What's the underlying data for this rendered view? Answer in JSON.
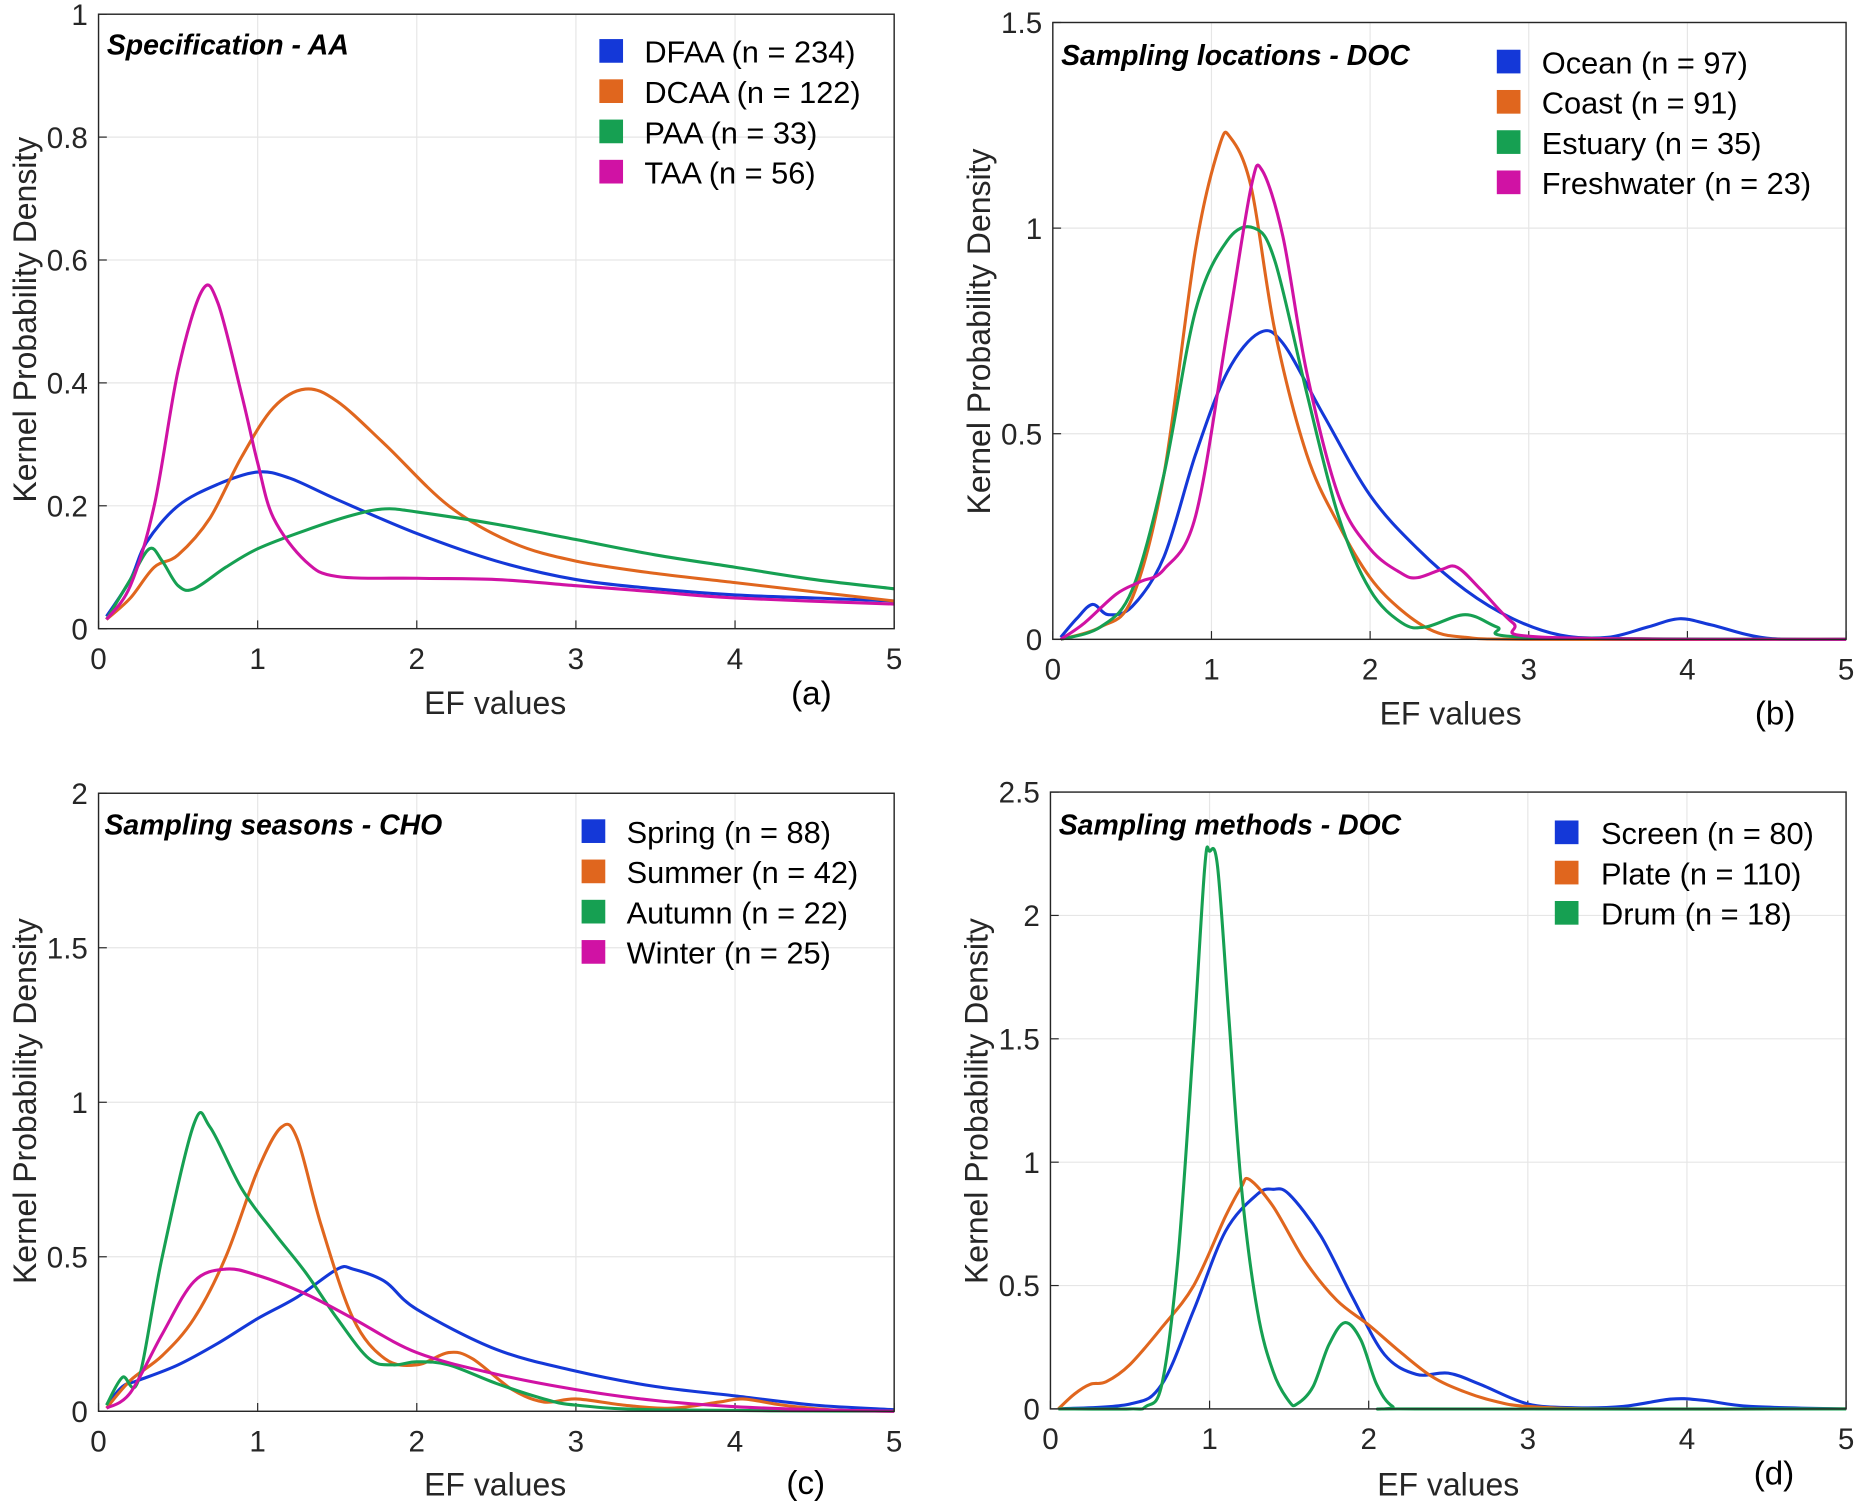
{
  "chart_data": [
    {
      "type": "line",
      "panel_label": "(a)",
      "title": "Specification - AA",
      "xlabel": "EF values",
      "ylabel": "Kernel Probability Density",
      "xlim": [
        0,
        5
      ],
      "ylim": [
        0,
        1
      ],
      "xticks": [
        "0",
        "1",
        "2",
        "3",
        "4",
        "5"
      ],
      "yticks": [
        "0",
        "0.2",
        "0.4",
        "0.6",
        "0.8",
        "1"
      ],
      "grid": true,
      "legend": "top-right",
      "series": [
        {
          "name": "DFAA (n = 234)",
          "color": "#1438d8",
          "x": [
            0.05,
            0.2,
            0.3,
            0.5,
            0.75,
            1.0,
            1.2,
            1.5,
            2,
            2.5,
            3,
            3.5,
            4,
            4.5,
            5
          ],
          "y": [
            0.02,
            0.08,
            0.14,
            0.2,
            0.235,
            0.255,
            0.245,
            0.21,
            0.155,
            0.11,
            0.08,
            0.065,
            0.055,
            0.05,
            0.045
          ]
        },
        {
          "name": "DCAA (n = 122)",
          "color": "#e0661e",
          "x": [
            0.05,
            0.2,
            0.35,
            0.5,
            0.7,
            0.9,
            1.1,
            1.3,
            1.5,
            1.8,
            2.2,
            2.6,
            3,
            3.5,
            4,
            4.5,
            5
          ],
          "y": [
            0.015,
            0.05,
            0.1,
            0.12,
            0.18,
            0.28,
            0.36,
            0.39,
            0.37,
            0.3,
            0.2,
            0.14,
            0.11,
            0.09,
            0.075,
            0.06,
            0.045
          ]
        },
        {
          "name": "PAA (n = 33)",
          "color": "#16a052",
          "x": [
            0.05,
            0.2,
            0.32,
            0.4,
            0.5,
            0.6,
            0.8,
            1.0,
            1.3,
            1.6,
            1.8,
            2,
            2.5,
            3,
            3.5,
            4,
            4.5,
            5
          ],
          "y": [
            0.015,
            0.08,
            0.13,
            0.11,
            0.07,
            0.065,
            0.1,
            0.13,
            0.16,
            0.185,
            0.195,
            0.19,
            0.17,
            0.145,
            0.12,
            0.1,
            0.08,
            0.065
          ]
        },
        {
          "name": "TAA (n = 56)",
          "color": "#d012a4",
          "x": [
            0.05,
            0.2,
            0.35,
            0.5,
            0.65,
            0.75,
            0.9,
            1.0,
            1.1,
            1.3,
            1.5,
            2,
            2.5,
            3,
            3.5,
            4,
            5
          ],
          "y": [
            0.015,
            0.07,
            0.2,
            0.42,
            0.55,
            0.53,
            0.38,
            0.27,
            0.18,
            0.11,
            0.085,
            0.082,
            0.08,
            0.07,
            0.06,
            0.05,
            0.04
          ]
        }
      ]
    },
    {
      "type": "line",
      "panel_label": "(b)",
      "title": "Sampling locations - DOC",
      "xlabel": "EF values",
      "ylabel": "Kernel Probability Density",
      "xlim": [
        0,
        5
      ],
      "ylim": [
        0,
        1.5
      ],
      "xticks": [
        "0",
        "1",
        "2",
        "3",
        "4",
        "5"
      ],
      "yticks": [
        "0",
        "0.5",
        "1",
        "1.5"
      ],
      "grid": true,
      "legend": "top-right",
      "series": [
        {
          "name": "Ocean (n = 97)",
          "color": "#1438d8",
          "x": [
            0.05,
            0.15,
            0.25,
            0.35,
            0.5,
            0.7,
            0.9,
            1.1,
            1.3,
            1.45,
            1.7,
            2,
            2.3,
            2.6,
            2.9,
            3.2,
            3.5,
            3.75,
            3.95,
            4.15,
            4.5,
            5
          ],
          "y": [
            0.005,
            0.05,
            0.085,
            0.06,
            0.08,
            0.2,
            0.45,
            0.65,
            0.745,
            0.72,
            0.55,
            0.35,
            0.22,
            0.12,
            0.05,
            0.01,
            0.005,
            0.03,
            0.05,
            0.035,
            0.003,
            0
          ]
        },
        {
          "name": "Coast (n = 91)",
          "color": "#e0661e",
          "x": [
            0.05,
            0.3,
            0.5,
            0.7,
            0.9,
            1.05,
            1.12,
            1.25,
            1.4,
            1.6,
            1.8,
            2.0,
            2.2,
            2.4,
            2.6,
            3,
            5
          ],
          "y": [
            0,
            0.03,
            0.1,
            0.4,
            0.95,
            1.2,
            1.22,
            1.1,
            0.75,
            0.45,
            0.28,
            0.15,
            0.07,
            0.02,
            0.005,
            0,
            0
          ]
        },
        {
          "name": "Estuary (n = 35)",
          "color": "#16a052",
          "x": [
            0.05,
            0.3,
            0.5,
            0.7,
            0.9,
            1.1,
            1.27,
            1.4,
            1.6,
            1.8,
            2.0,
            2.2,
            2.35,
            2.6,
            2.8,
            3,
            5
          ],
          "y": [
            0,
            0.03,
            0.12,
            0.4,
            0.8,
            0.97,
            1.0,
            0.92,
            0.6,
            0.3,
            0.12,
            0.04,
            0.03,
            0.06,
            0.03,
            0.005,
            0
          ]
        },
        {
          "name": "Freshwater (n = 23)",
          "color": "#d012a4",
          "x": [
            0.05,
            0.2,
            0.4,
            0.55,
            0.7,
            0.9,
            1.1,
            1.25,
            1.32,
            1.45,
            1.6,
            1.8,
            2.0,
            2.2,
            2.3,
            2.45,
            2.55,
            2.7,
            2.9,
            3.1,
            5
          ],
          "y": [
            0,
            0.04,
            0.11,
            0.14,
            0.17,
            0.3,
            0.75,
            1.1,
            1.14,
            0.98,
            0.65,
            0.35,
            0.22,
            0.16,
            0.15,
            0.17,
            0.175,
            0.12,
            0.04,
            0.005,
            0
          ]
        }
      ]
    },
    {
      "type": "line",
      "panel_label": "(c)",
      "title": "Sampling seasons - CHO",
      "xlabel": "EF values",
      "ylabel": "Kernel Probability Density",
      "xlim": [
        0,
        5
      ],
      "ylim": [
        0,
        2
      ],
      "xticks": [
        "0",
        "1",
        "2",
        "3",
        "4",
        "5"
      ],
      "yticks": [
        "0",
        "0.5",
        "1",
        "1.5",
        "2"
      ],
      "grid": true,
      "legend": "top-right",
      "series": [
        {
          "name": "Spring (n = 88)",
          "color": "#1438d8",
          "x": [
            0.05,
            0.15,
            0.25,
            0.5,
            0.75,
            1,
            1.25,
            1.5,
            1.6,
            1.8,
            2,
            2.5,
            3,
            3.5,
            4,
            4.5,
            5
          ],
          "y": [
            0.02,
            0.08,
            0.1,
            0.15,
            0.22,
            0.3,
            0.37,
            0.46,
            0.46,
            0.42,
            0.33,
            0.2,
            0.13,
            0.08,
            0.05,
            0.02,
            0.005
          ]
        },
        {
          "name": "Summer (n = 42)",
          "color": "#e0661e",
          "x": [
            0.05,
            0.2,
            0.4,
            0.6,
            0.8,
            1.0,
            1.15,
            1.25,
            1.4,
            1.6,
            1.8,
            2.0,
            2.2,
            2.35,
            2.6,
            2.8,
            3.0,
            3.3,
            3.6,
            3.9,
            4.05,
            4.3,
            4.6,
            5
          ],
          "y": [
            0.01,
            0.1,
            0.18,
            0.3,
            0.5,
            0.78,
            0.92,
            0.88,
            0.6,
            0.3,
            0.17,
            0.15,
            0.19,
            0.17,
            0.07,
            0.03,
            0.04,
            0.02,
            0.01,
            0.03,
            0.04,
            0.02,
            0.005,
            0
          ]
        },
        {
          "name": "Autumn (n = 22)",
          "color": "#16a052",
          "x": [
            0.05,
            0.15,
            0.25,
            0.4,
            0.6,
            0.7,
            0.9,
            1.1,
            1.3,
            1.5,
            1.7,
            1.85,
            2.0,
            2.2,
            2.5,
            2.8,
            3,
            3.5,
            5
          ],
          "y": [
            0.02,
            0.11,
            0.1,
            0.5,
            0.93,
            0.92,
            0.72,
            0.58,
            0.45,
            0.3,
            0.17,
            0.15,
            0.16,
            0.15,
            0.09,
            0.04,
            0.02,
            0.005,
            0
          ]
        },
        {
          "name": "Winter (n = 25)",
          "color": "#d012a4",
          "x": [
            0.05,
            0.2,
            0.4,
            0.6,
            0.8,
            1.0,
            1.3,
            1.6,
            2,
            2.5,
            3,
            3.5,
            4,
            4.5,
            5
          ],
          "y": [
            0.01,
            0.06,
            0.25,
            0.42,
            0.46,
            0.44,
            0.38,
            0.3,
            0.19,
            0.12,
            0.07,
            0.035,
            0.015,
            0.005,
            0
          ]
        }
      ]
    },
    {
      "type": "line",
      "panel_label": "(d)",
      "title": "Sampling methods - DOC",
      "xlabel": "EF values",
      "ylabel": "Kernel Probability Density",
      "xlim": [
        0,
        5
      ],
      "ylim": [
        0,
        2.5
      ],
      "xticks": [
        "0",
        "1",
        "2",
        "3",
        "4",
        "5"
      ],
      "yticks": [
        "0",
        "0.5",
        "1",
        "1.5",
        "2",
        "2.5"
      ],
      "grid": true,
      "legend": "top-right",
      "series": [
        {
          "name": "Screen (n = 80)",
          "color": "#1438d8",
          "x": [
            0.05,
            0.5,
            0.7,
            0.9,
            1.1,
            1.3,
            1.4,
            1.5,
            1.7,
            1.9,
            2.1,
            2.3,
            2.5,
            2.7,
            3,
            3.3,
            3.6,
            3.9,
            4.1,
            4.4,
            5
          ],
          "y": [
            0,
            0.02,
            0.1,
            0.4,
            0.72,
            0.87,
            0.89,
            0.87,
            0.7,
            0.45,
            0.22,
            0.14,
            0.145,
            0.1,
            0.02,
            0.005,
            0.01,
            0.04,
            0.035,
            0.01,
            0
          ]
        },
        {
          "name": "Plate (n = 110)",
          "color": "#e0661e",
          "x": [
            0.05,
            0.15,
            0.25,
            0.35,
            0.5,
            0.7,
            0.9,
            1.1,
            1.2,
            1.25,
            1.4,
            1.6,
            1.8,
            2.0,
            2.2,
            2.4,
            2.6,
            2.8,
            3,
            3.5,
            5
          ],
          "y": [
            0,
            0.06,
            0.1,
            0.11,
            0.18,
            0.33,
            0.5,
            0.78,
            0.9,
            0.93,
            0.82,
            0.6,
            0.44,
            0.34,
            0.23,
            0.13,
            0.07,
            0.03,
            0.01,
            0,
            0
          ]
        },
        {
          "name": "Drum (n = 18)",
          "color": "#16a052",
          "x": [
            0.05,
            0.5,
            0.6,
            0.7,
            0.8,
            0.9,
            0.97,
            1.0,
            1.05,
            1.12,
            1.2,
            1.3,
            1.4,
            1.5,
            1.55,
            1.65,
            1.75,
            1.85,
            1.95,
            2.05,
            2.15,
            2.3,
            5
          ],
          "y": [
            0,
            0,
            0.01,
            0.1,
            0.6,
            1.5,
            2.2,
            2.26,
            2.2,
            1.6,
            0.9,
            0.4,
            0.15,
            0.03,
            0.02,
            0.09,
            0.26,
            0.35,
            0.28,
            0.1,
            0.01,
            0,
            0
          ]
        }
      ]
    }
  ]
}
